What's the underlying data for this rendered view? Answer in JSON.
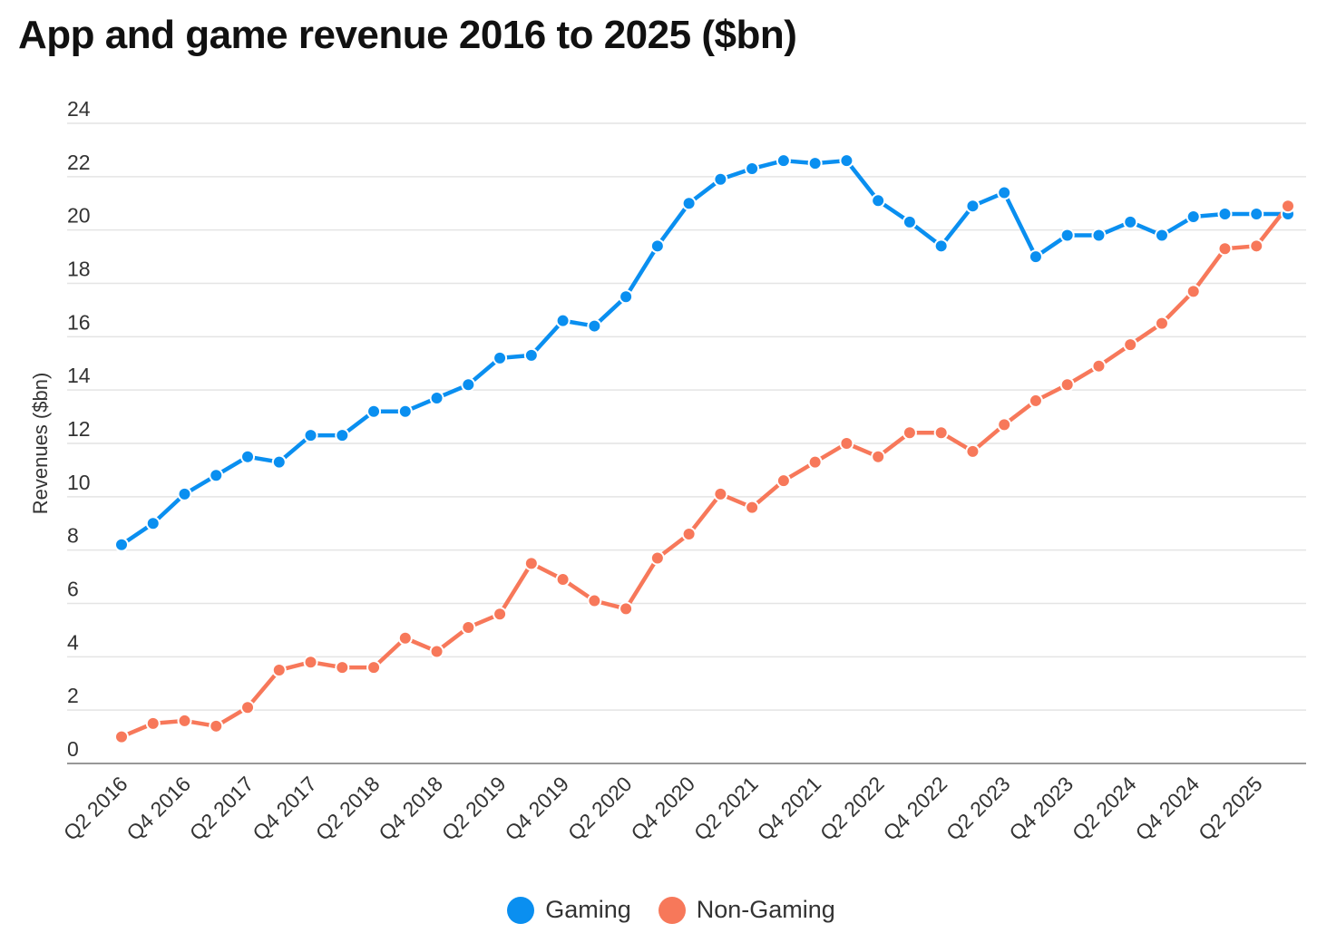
{
  "chart_data": {
    "type": "line",
    "title": "App and game revenue 2016 to 2025 ($bn)",
    "xlabel": "",
    "ylabel": "Revenues ($bn)",
    "ylim": [
      0,
      24
    ],
    "yticks": [
      0,
      2,
      4,
      6,
      8,
      10,
      12,
      14,
      16,
      18,
      20,
      22,
      24
    ],
    "grid": true,
    "legend": "bottom-center",
    "categories": [
      "Q2 2016",
      "Q3 2016",
      "Q4 2016",
      "Q1 2017",
      "Q2 2017",
      "Q3 2017",
      "Q4 2017",
      "Q1 2018",
      "Q2 2018",
      "Q3 2018",
      "Q4 2018",
      "Q1 2019",
      "Q2 2019",
      "Q3 2019",
      "Q4 2019",
      "Q1 2020",
      "Q2 2020",
      "Q3 2020",
      "Q4 2020",
      "Q1 2021",
      "Q2 2021",
      "Q3 2021",
      "Q4 2021",
      "Q1 2022",
      "Q2 2022",
      "Q3 2022",
      "Q4 2022",
      "Q1 2023",
      "Q2 2023",
      "Q3 2023",
      "Q4 2023",
      "Q1 2024",
      "Q2 2024",
      "Q3 2024",
      "Q4 2024",
      "Q1 2025",
      "Q2 2025",
      "Q3 2025"
    ],
    "tick_labels": [
      "Q2 2016",
      "Q4 2016",
      "Q2 2017",
      "Q4 2017",
      "Q2 2018",
      "Q4 2018",
      "Q2 2019",
      "Q4 2019",
      "Q2 2020",
      "Q4 2020",
      "Q2 2021",
      "Q4 2021",
      "Q2 2022",
      "Q4 2022",
      "Q2 2023",
      "Q4 2023",
      "Q2 2024",
      "Q4 2024",
      "Q2 2025"
    ],
    "series": [
      {
        "name": "Gaming",
        "color": "#0a8ff0",
        "values": [
          8.2,
          9.0,
          10.1,
          10.8,
          11.5,
          11.3,
          12.3,
          12.3,
          13.2,
          13.2,
          13.7,
          14.2,
          15.2,
          15.3,
          16.6,
          16.4,
          17.5,
          19.4,
          21.0,
          21.9,
          22.3,
          22.6,
          22.5,
          22.6,
          21.1,
          20.3,
          19.4,
          20.9,
          21.4,
          19.0,
          19.8,
          19.8,
          20.3,
          19.8,
          20.5,
          20.6,
          20.6,
          20.6
        ]
      },
      {
        "name": "Non-Gaming",
        "color": "#f7785a",
        "values": [
          1.0,
          1.5,
          1.6,
          1.4,
          2.1,
          3.5,
          3.8,
          3.6,
          3.6,
          4.7,
          4.2,
          5.1,
          5.6,
          7.5,
          6.9,
          6.1,
          5.8,
          7.7,
          8.6,
          10.1,
          9.6,
          10.6,
          11.3,
          12.0,
          11.5,
          12.4,
          12.4,
          11.7,
          12.7,
          13.6,
          14.2,
          14.9,
          15.7,
          16.5,
          17.7,
          19.3,
          19.4,
          20.9
        ]
      }
    ]
  }
}
